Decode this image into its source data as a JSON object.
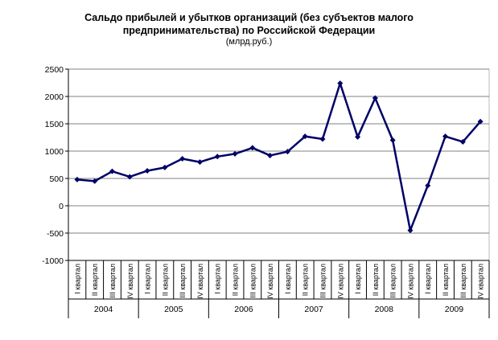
{
  "chart_data": {
    "type": "line",
    "title": "Сальдо прибылей и убытков организаций (без субъектов малого",
    "title_line2": "предпринимательства) по Российской Федерации",
    "subtitle": "(млрд.руб.)",
    "xlabel": "",
    "ylabel": "",
    "ylim": [
      -1000,
      2500
    ],
    "yticks": [
      -1000,
      -500,
      0,
      500,
      1000,
      1500,
      2000,
      2500
    ],
    "grid": true,
    "quarters": [
      "I квартал",
      "II квартал",
      "III квартал",
      "IV квартал"
    ],
    "years": [
      "2004",
      "2005",
      "2006",
      "2007",
      "2008",
      "2009"
    ],
    "series": [
      {
        "name": "Сальдо",
        "color": "#000066",
        "values": [
          480,
          450,
          630,
          530,
          640,
          700,
          860,
          800,
          900,
          950,
          1060,
          920,
          990,
          1270,
          1220,
          2240,
          1260,
          1970,
          1200,
          -450,
          370,
          1270,
          1170,
          1540
        ]
      }
    ]
  }
}
